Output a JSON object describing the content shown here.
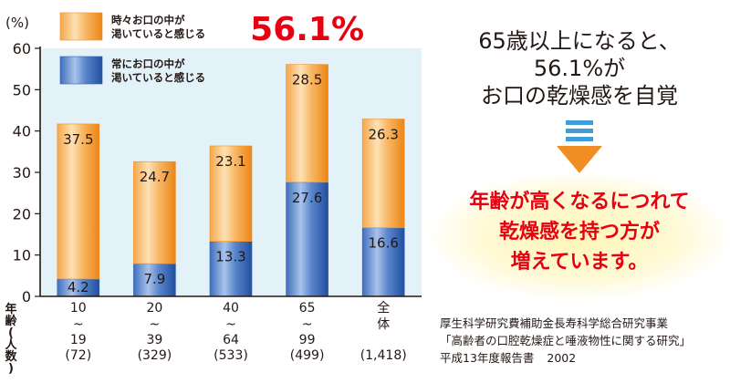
{
  "chart_data": {
    "type": "bar",
    "stacked": true,
    "y_unit_label": "(%)",
    "ylim": [
      0,
      60
    ],
    "yticks": [
      0,
      10,
      20,
      30,
      40,
      50,
      60
    ],
    "categories": [
      {
        "age_top": "10",
        "sep": "~",
        "age_bottom": "19",
        "count": "(72)"
      },
      {
        "age_top": "20",
        "sep": "~",
        "age_bottom": "39",
        "count": "(329)"
      },
      {
        "age_top": "40",
        "sep": "~",
        "age_bottom": "64",
        "count": "(533)"
      },
      {
        "age_top": "65",
        "sep": "~",
        "age_bottom": "99",
        "count": "(499)"
      },
      {
        "age_top": "全",
        "sep": "体",
        "age_bottom": "",
        "count": "(1,418)"
      }
    ],
    "x_axis_title": [
      "年",
      "齢",
      "(",
      "人",
      "数",
      ")"
    ],
    "series": [
      {
        "name": "常にお口の中が渇いていると感じる",
        "legend_lines": [
          "常にお口の中が",
          "渇いていると感じる"
        ],
        "color": "#2f5fae",
        "values": [
          4.2,
          7.9,
          13.3,
          27.6,
          16.6
        ],
        "labels": [
          "4.2",
          "7.9",
          "13.3",
          "27.6",
          "16.6"
        ]
      },
      {
        "name": "時々お口の中が渇いていると感じる",
        "legend_lines": [
          "時々お口の中が",
          "渇いていると感じる"
        ],
        "color": "#f08e24",
        "values": [
          37.5,
          24.7,
          23.1,
          28.5,
          26.3
        ],
        "labels": [
          "37.5",
          "24.7",
          "23.1",
          "28.5",
          "26.3"
        ]
      }
    ],
    "highlight": {
      "category_index": 3,
      "text": "56.1%",
      "color": "#e60012"
    },
    "plot_background": "#e2f2f8"
  },
  "headline": {
    "lines": [
      "65歳以上になると、",
      "56.1%が",
      "お口の乾燥感を自覚"
    ]
  },
  "arrow": {
    "icon": "down-arrow-icon",
    "stripe_color": "#3d9fd6",
    "arrow_color": "#f08e24"
  },
  "conclusion": {
    "lines": [
      "年齢が高くなるにつれて",
      "乾燥感を持つ方が",
      "増えています。"
    ],
    "color": "#e60012"
  },
  "source": {
    "line1": "厚生科学研究費補助金長寿科学総合研究事業",
    "line2": "「高齢者の口腔乾燥症と唾液物性に関する研究」",
    "report": "平成13年度報告書",
    "year": "2002"
  }
}
